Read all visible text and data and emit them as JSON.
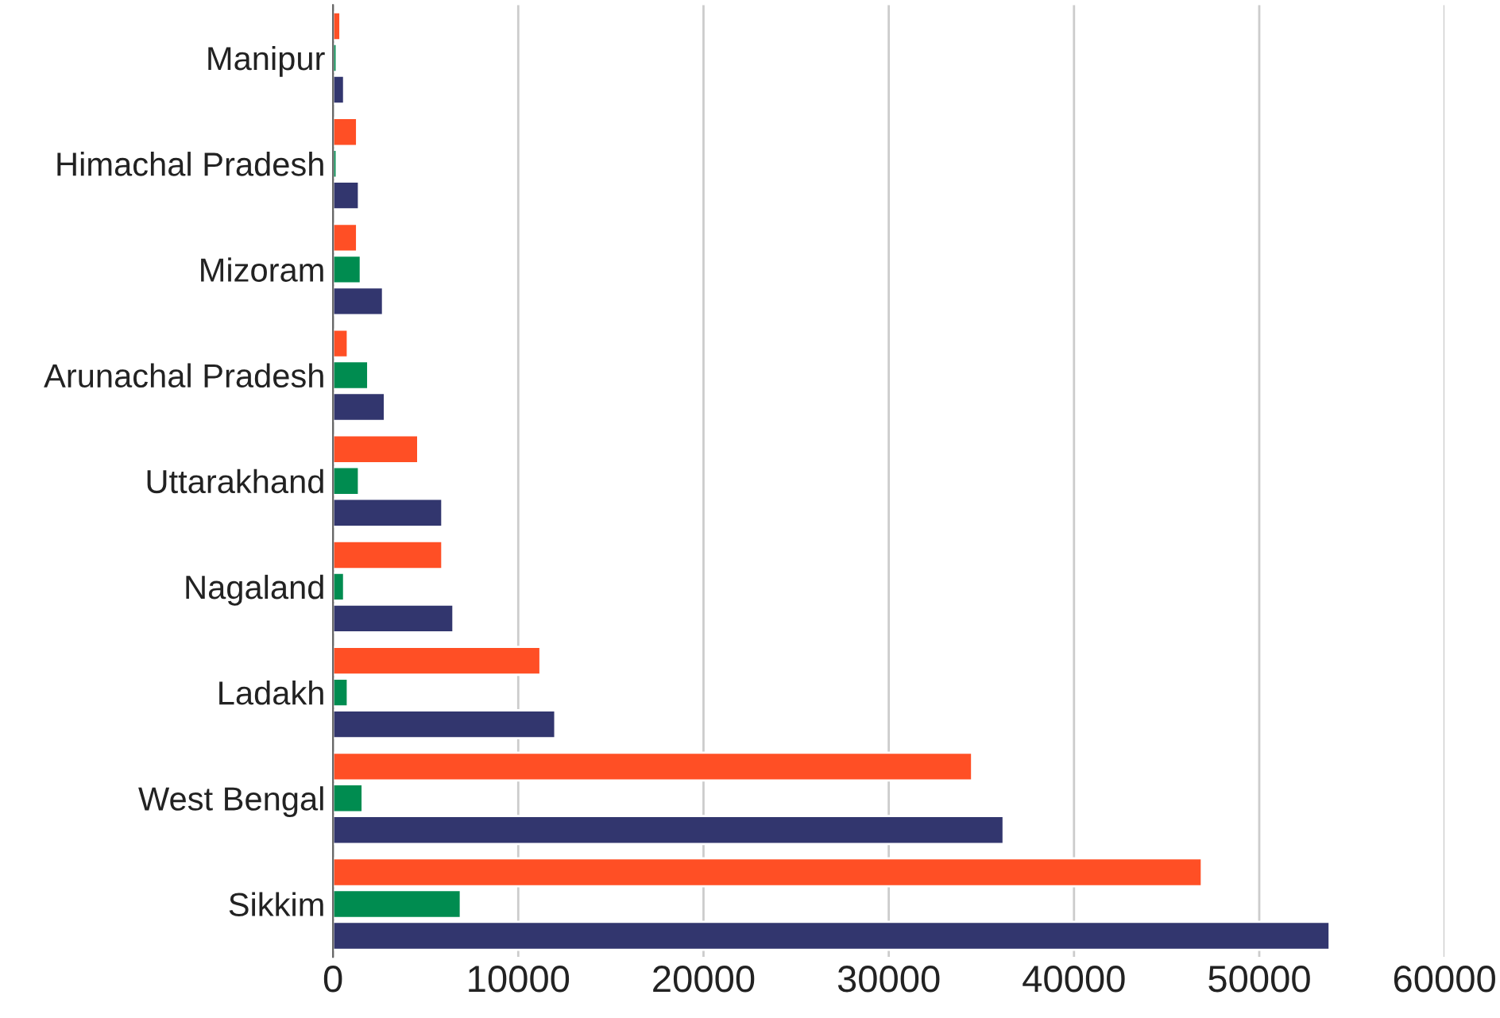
{
  "chart_data": {
    "type": "bar",
    "orientation": "horizontal",
    "categories": [
      "Manipur",
      "Himachal Pradesh",
      "Mizoram",
      "Arunachal Pradesh",
      "Uttarakhand",
      "Nagaland",
      "Ladakh",
      "West Bengal",
      "Sikkim"
    ],
    "series": [
      {
        "color": "#ff4f25",
        "values": [
          400,
          1300,
          1300,
          800,
          4600,
          5900,
          11200,
          34500,
          46900
        ]
      },
      {
        "color": "#008c50",
        "values": [
          200,
          200,
          1500,
          1900,
          1400,
          600,
          800,
          1600,
          6900
        ]
      },
      {
        "color": "#32366e",
        "values": [
          600,
          1400,
          2700,
          2800,
          5900,
          6500,
          12000,
          36200,
          53800
        ]
      }
    ],
    "xlim": [
      0,
      60000
    ],
    "xticks": [
      0,
      10000,
      20000,
      30000,
      40000,
      50000,
      60000
    ],
    "grid": "x"
  }
}
